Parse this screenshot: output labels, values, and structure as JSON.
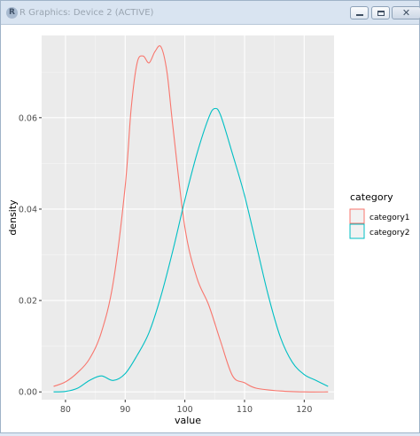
{
  "window": {
    "title": "R Graphics: Device 2 (ACTIVE)",
    "app_icon_letter": "R",
    "close_symbol": "✕"
  },
  "colors": {
    "panel_background": "#ebebeb",
    "grid_major": "#ffffff",
    "category1": "#f8766d",
    "category2": "#00bfc4",
    "axis_text": "#4d4d4d"
  },
  "chart_data": {
    "type": "line",
    "xlabel": "value",
    "ylabel": "density",
    "xlim": [
      76,
      125
    ],
    "ylim": [
      -0.0017,
      0.078
    ],
    "x_ticks": [
      80,
      90,
      100,
      110,
      120
    ],
    "x_tick_labels": [
      "80",
      "90",
      "100",
      "110",
      "120"
    ],
    "y_ticks": [
      0.0,
      0.02,
      0.04,
      0.06
    ],
    "y_tick_labels": [
      "0.00",
      "0.02",
      "0.04",
      "0.06"
    ],
    "grid": true,
    "legend": {
      "title": "category",
      "placement": "right"
    },
    "series": [
      {
        "name": "category1",
        "color": "#f8766d",
        "x": [
          78,
          80,
          82,
          84,
          86,
          88,
          90,
          91,
          92,
          93,
          94,
          95,
          96,
          97,
          98,
          100,
          102,
          104,
          106,
          108,
          110,
          112,
          116,
          120,
          124
        ],
        "y": [
          0.0012,
          0.0022,
          0.0042,
          0.0072,
          0.013,
          0.024,
          0.045,
          0.062,
          0.072,
          0.0735,
          0.072,
          0.0745,
          0.0755,
          0.07,
          0.058,
          0.036,
          0.025,
          0.019,
          0.011,
          0.0035,
          0.002,
          0.0008,
          0.0002,
          0.0,
          0.0
        ]
      },
      {
        "name": "category2",
        "color": "#00bfc4",
        "x": [
          78,
          80,
          82,
          84,
          86,
          88,
          90,
          92,
          94,
          96,
          98,
          100,
          102,
          104,
          105,
          106,
          108,
          110,
          112,
          114,
          116,
          118,
          120,
          122,
          124
        ],
        "y": [
          0.0,
          0.0001,
          0.0008,
          0.0025,
          0.0035,
          0.0025,
          0.004,
          0.008,
          0.013,
          0.021,
          0.031,
          0.042,
          0.052,
          0.06,
          0.062,
          0.0605,
          0.052,
          0.043,
          0.032,
          0.021,
          0.012,
          0.0065,
          0.0038,
          0.0025,
          0.0012
        ]
      }
    ]
  }
}
